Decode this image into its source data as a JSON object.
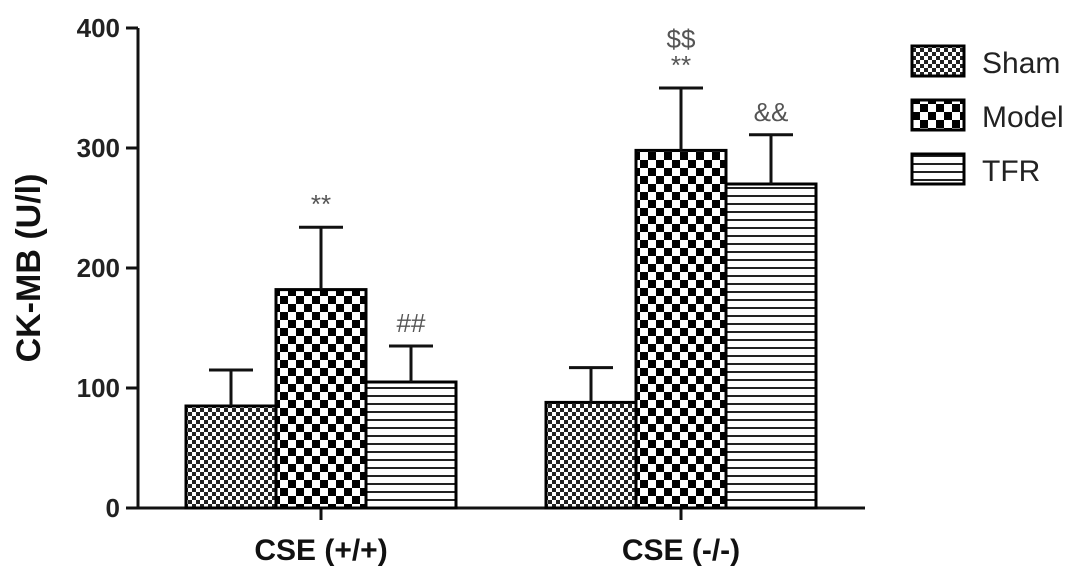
{
  "chart_data": {
    "type": "bar",
    "ylabel": "CK-MB (U/l)",
    "ylim": [
      0,
      400
    ],
    "yticks": [
      0,
      100,
      200,
      300,
      400
    ],
    "categories": [
      "CSE (+/+)",
      "CSE (-/-)"
    ],
    "series": [
      {
        "name": "Sham",
        "pattern": "fine-check",
        "values": [
          85,
          88
        ],
        "errors": [
          30,
          29
        ]
      },
      {
        "name": "Model",
        "pattern": "coarse-check",
        "values": [
          182,
          298
        ],
        "errors": [
          52,
          52
        ]
      },
      {
        "name": "TFR",
        "pattern": "horizontal-lines",
        "values": [
          105,
          270
        ],
        "errors": [
          30,
          41
        ]
      }
    ],
    "annotations": [
      {
        "category": 0,
        "series": 1,
        "text": "**"
      },
      {
        "category": 0,
        "series": 2,
        "text": "##"
      },
      {
        "category": 1,
        "series": 1,
        "text": "**"
      },
      {
        "category": 1,
        "series": 1,
        "text": "$$"
      },
      {
        "category": 1,
        "series": 2,
        "text": "&&"
      }
    ],
    "legend_position": "top-right",
    "grid": false
  }
}
